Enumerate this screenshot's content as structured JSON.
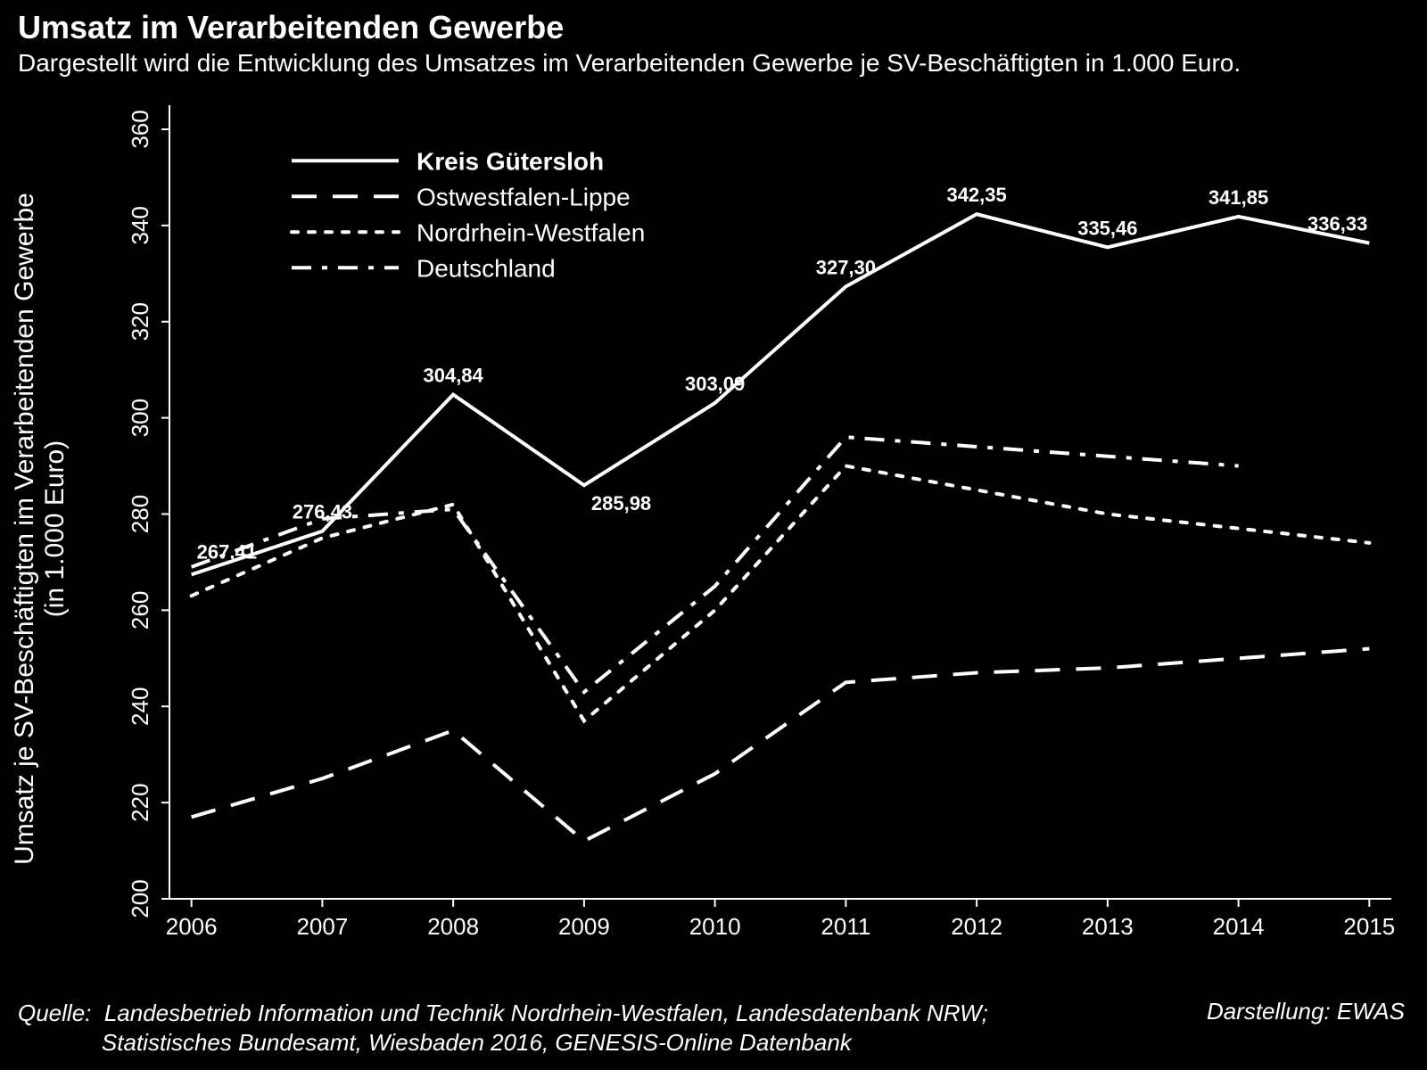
{
  "title": "Umsatz im Verarbeitenden Gewerbe",
  "subtitle": "Dargestellt wird die Entwicklung des Umsatzes im Verarbeitenden Gewerbe je SV-Beschäftigten in 1.000 Euro.",
  "footer": {
    "source_label": "Quelle:",
    "source_line1": "Landesbetrieb Information und Technik Nordrhein-Westfalen, Landesdatenbank NRW;",
    "source_line2": "Statistisches Bundesamt, Wiesbaden 2016, GENESIS-Online Datenbank",
    "right": "Darstellung: EWAS"
  },
  "chart": {
    "type": "line",
    "background_color": "#000000",
    "line_color": "#ffffff",
    "text_color": "#ffffff",
    "axis_color": "#ffffff",
    "axis_stroke_width": 2,
    "series_stroke_width": 4,
    "categories": [
      "2006",
      "2007",
      "2008",
      "2009",
      "2010",
      "2011",
      "2012",
      "2013",
      "2014",
      "2015"
    ],
    "y": {
      "title": "Umsatz je SV-Beschäftigten im Verarbeitenden Gewerbe\n(in 1.000 Euro)",
      "min": 200,
      "max": 365,
      "ticks": [
        200,
        220,
        240,
        260,
        280,
        300,
        320,
        340,
        360
      ]
    },
    "series": [
      {
        "name": "Kreis Gütersloh",
        "dash": "solid",
        "bold_legend": true,
        "values": [
          267.41,
          276.43,
          304.84,
          285.98,
          303.09,
          327.3,
          342.35,
          335.46,
          341.85,
          336.33
        ],
        "labels": [
          "267,41",
          "276,43",
          "304,84",
          "285,98",
          "303,09",
          "327,30",
          "342,35",
          "335,46",
          "341,85",
          "336,33"
        ]
      },
      {
        "name": "Ostwestfalen-Lippe",
        "dash": "long-dash",
        "bold_legend": false,
        "values": [
          217,
          225,
          235,
          212,
          226,
          245,
          247,
          248,
          250,
          252
        ]
      },
      {
        "name": "Nordrhein-Westfalen",
        "dash": "dotted",
        "bold_legend": false,
        "values": [
          263,
          275,
          282,
          237,
          260,
          290,
          285,
          280,
          277,
          274
        ]
      },
      {
        "name": "Deutschland",
        "dash": "dash-dot",
        "bold_legend": false,
        "values": [
          269,
          279,
          281,
          243,
          265,
          296,
          294,
          292,
          290,
          null
        ]
      }
    ],
    "legend": {
      "x": 0.1,
      "y_top": 0.93,
      "row_gap": 40
    },
    "data_label_fontsize": 22,
    "tick_label_fontsize": 26,
    "yaxis_title_fontsize": 30,
    "legend_fontsize": 28
  }
}
